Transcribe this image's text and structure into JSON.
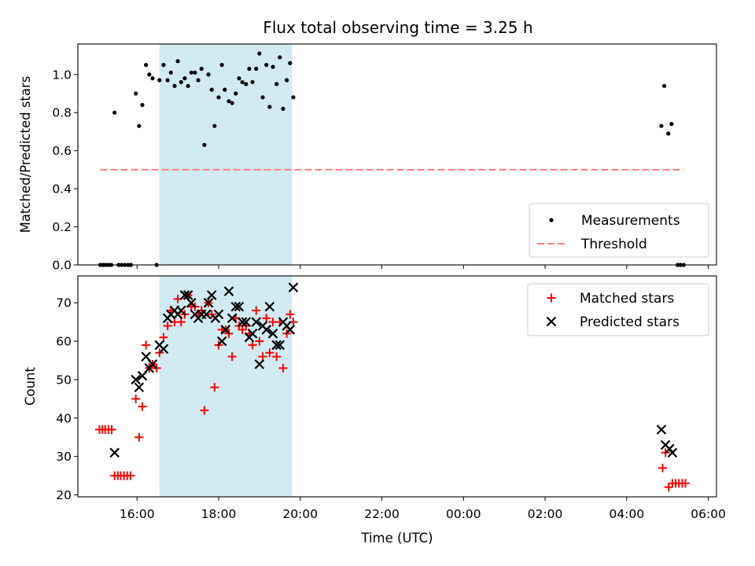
{
  "title": "Flux total observing time = 3.25 h",
  "xlabel": "Time (UTC)",
  "colors": {
    "shade": "#add8e6",
    "measurements": "#000000",
    "threshold": "#ff7f7f",
    "matched": "#ff0000",
    "predicted": "#000000"
  },
  "chart_data": [
    {
      "type": "scatter",
      "ylabel": "Matched/Predicted stars",
      "xlim": [
        14.55,
        30.2
      ],
      "ylim": [
        0,
        1.16
      ],
      "yticks": [
        0.0,
        0.2,
        0.4,
        0.6,
        0.8,
        1.0
      ],
      "xticks": [
        16,
        18,
        20,
        22,
        24,
        26,
        28,
        30
      ],
      "shaded_span": [
        16.55,
        19.8
      ],
      "legend_position": "lower right",
      "series": [
        {
          "name": "Measurements",
          "marker": "dot",
          "points": [
            [
              15.1,
              0
            ],
            [
              15.17,
              0
            ],
            [
              15.23,
              0
            ],
            [
              15.3,
              0
            ],
            [
              15.37,
              0
            ],
            [
              15.45,
              0.8
            ],
            [
              15.55,
              0
            ],
            [
              15.62,
              0
            ],
            [
              15.7,
              0
            ],
            [
              15.78,
              0
            ],
            [
              15.85,
              0
            ],
            [
              15.97,
              0.9
            ],
            [
              16.05,
              0.73
            ],
            [
              16.13,
              0.84
            ],
            [
              16.22,
              1.05
            ],
            [
              16.3,
              1.0
            ],
            [
              16.38,
              0.98
            ],
            [
              16.48,
              0
            ],
            [
              16.55,
              0.97
            ],
            [
              16.65,
              1.05
            ],
            [
              16.75,
              0.97
            ],
            [
              16.83,
              1.01
            ],
            [
              16.92,
              0.94
            ],
            [
              17.0,
              1.07
            ],
            [
              17.08,
              0.96
            ],
            [
              17.17,
              0.98
            ],
            [
              17.25,
              0.94
            ],
            [
              17.33,
              1.01
            ],
            [
              17.42,
              1.01
            ],
            [
              17.5,
              0.97
            ],
            [
              17.58,
              1.03
            ],
            [
              17.65,
              0.63
            ],
            [
              17.75,
              1.0
            ],
            [
              17.83,
              0.92
            ],
            [
              17.9,
              0.73
            ],
            [
              18.0,
              0.88
            ],
            [
              18.08,
              1.05
            ],
            [
              18.15,
              0.92
            ],
            [
              18.25,
              0.86
            ],
            [
              18.33,
              0.85
            ],
            [
              18.42,
              0.9
            ],
            [
              18.5,
              0.98
            ],
            [
              18.58,
              0.96
            ],
            [
              18.67,
              0.95
            ],
            [
              18.75,
              1.03
            ],
            [
              18.83,
              0.96
            ],
            [
              18.92,
              1.03
            ],
            [
              19.0,
              1.11
            ],
            [
              19.08,
              0.88
            ],
            [
              19.17,
              1.05
            ],
            [
              19.25,
              0.83
            ],
            [
              19.33,
              1.04
            ],
            [
              19.42,
              0.95
            ],
            [
              19.5,
              1.09
            ],
            [
              19.58,
              0.82
            ],
            [
              19.67,
              0.97
            ],
            [
              19.75,
              1.06
            ],
            [
              19.83,
              0.88
            ],
            [
              28.85,
              0.73
            ],
            [
              28.92,
              0.94
            ],
            [
              29.02,
              0.69
            ],
            [
              29.1,
              0.74
            ],
            [
              29.25,
              0
            ],
            [
              29.32,
              0
            ],
            [
              29.4,
              0
            ]
          ]
        },
        {
          "name": "Threshold",
          "marker": "dashed-line",
          "points": [
            [
              15.1,
              0.5
            ],
            [
              29.4,
              0.5
            ]
          ]
        }
      ]
    },
    {
      "type": "scatter",
      "ylabel": "Count",
      "xlim": [
        14.55,
        30.2
      ],
      "ylim": [
        19.5,
        77
      ],
      "yticks": [
        20,
        30,
        40,
        50,
        60,
        70
      ],
      "xticks": [
        16,
        18,
        20,
        22,
        24,
        26,
        28,
        30
      ],
      "xticklabels": [
        "16:00",
        "18:00",
        "20:00",
        "22:00",
        "00:00",
        "02:00",
        "04:00",
        "06:00"
      ],
      "shaded_span": [
        16.55,
        19.8
      ],
      "legend_position": "upper right",
      "series": [
        {
          "name": "Matched stars",
          "marker": "plus",
          "points": [
            [
              15.08,
              37
            ],
            [
              15.15,
              37
            ],
            [
              15.22,
              37
            ],
            [
              15.3,
              37
            ],
            [
              15.38,
              37
            ],
            [
              15.45,
              25
            ],
            [
              15.53,
              25
            ],
            [
              15.6,
              25
            ],
            [
              15.68,
              25
            ],
            [
              15.76,
              25
            ],
            [
              15.84,
              25
            ],
            [
              15.97,
              45
            ],
            [
              16.05,
              35
            ],
            [
              16.13,
              43
            ],
            [
              16.22,
              59
            ],
            [
              16.3,
              53
            ],
            [
              16.38,
              54
            ],
            [
              16.48,
              53
            ],
            [
              16.55,
              57
            ],
            [
              16.65,
              61
            ],
            [
              16.75,
              64
            ],
            [
              16.83,
              68
            ],
            [
              16.92,
              65
            ],
            [
              17.0,
              71
            ],
            [
              17.08,
              65
            ],
            [
              17.17,
              67
            ],
            [
              17.25,
              72
            ],
            [
              17.33,
              69
            ],
            [
              17.42,
              69
            ],
            [
              17.5,
              67
            ],
            [
              17.58,
              68
            ],
            [
              17.65,
              42
            ],
            [
              17.75,
              70
            ],
            [
              17.83,
              67
            ],
            [
              17.9,
              48
            ],
            [
              18.0,
              59
            ],
            [
              18.08,
              63
            ],
            [
              18.17,
              63
            ],
            [
              18.25,
              62
            ],
            [
              18.33,
              56
            ],
            [
              18.42,
              66
            ],
            [
              18.5,
              64
            ],
            [
              18.58,
              63
            ],
            [
              18.67,
              64
            ],
            [
              18.75,
              62
            ],
            [
              18.83,
              59
            ],
            [
              18.92,
              68
            ],
            [
              19.0,
              60
            ],
            [
              19.08,
              56
            ],
            [
              19.17,
              66
            ],
            [
              19.25,
              57
            ],
            [
              19.33,
              65
            ],
            [
              19.42,
              56
            ],
            [
              19.5,
              65
            ],
            [
              19.58,
              53
            ],
            [
              19.67,
              62
            ],
            [
              19.75,
              67
            ],
            [
              19.83,
              65
            ],
            [
              28.88,
              27
            ],
            [
              28.95,
              31
            ],
            [
              29.03,
              22
            ],
            [
              29.12,
              23
            ],
            [
              29.2,
              23
            ],
            [
              29.28,
              23
            ],
            [
              29.36,
              23
            ],
            [
              29.44,
              23
            ]
          ]
        },
        {
          "name": "Predicted stars",
          "marker": "x",
          "points": [
            [
              15.45,
              31
            ],
            [
              15.97,
              50
            ],
            [
              16.05,
              48
            ],
            [
              16.13,
              51
            ],
            [
              16.22,
              56
            ],
            [
              16.3,
              53
            ],
            [
              16.38,
              54
            ],
            [
              16.55,
              59
            ],
            [
              16.65,
              58
            ],
            [
              16.75,
              66
            ],
            [
              16.83,
              67
            ],
            [
              16.92,
              68
            ],
            [
              17.0,
              67
            ],
            [
              17.08,
              68
            ],
            [
              17.17,
              72
            ],
            [
              17.25,
              72
            ],
            [
              17.33,
              70
            ],
            [
              17.42,
              67
            ],
            [
              17.5,
              66
            ],
            [
              17.58,
              67
            ],
            [
              17.7,
              67
            ],
            [
              17.75,
              70
            ],
            [
              17.83,
              72
            ],
            [
              17.92,
              66
            ],
            [
              18.0,
              67
            ],
            [
              18.08,
              60
            ],
            [
              18.17,
              63
            ],
            [
              18.25,
              73
            ],
            [
              18.33,
              66
            ],
            [
              18.42,
              69
            ],
            [
              18.5,
              69
            ],
            [
              18.58,
              65
            ],
            [
              18.67,
              65
            ],
            [
              18.75,
              61
            ],
            [
              18.83,
              62
            ],
            [
              18.92,
              65
            ],
            [
              19.0,
              54
            ],
            [
              19.08,
              64
            ],
            [
              19.17,
              63
            ],
            [
              19.25,
              69
            ],
            [
              19.33,
              62
            ],
            [
              19.42,
              59
            ],
            [
              19.5,
              59
            ],
            [
              19.58,
              65
            ],
            [
              19.67,
              64
            ],
            [
              19.75,
              63
            ],
            [
              19.83,
              74
            ],
            [
              28.85,
              37
            ],
            [
              28.95,
              33
            ],
            [
              29.05,
              32
            ],
            [
              29.12,
              31
            ]
          ]
        }
      ]
    }
  ]
}
